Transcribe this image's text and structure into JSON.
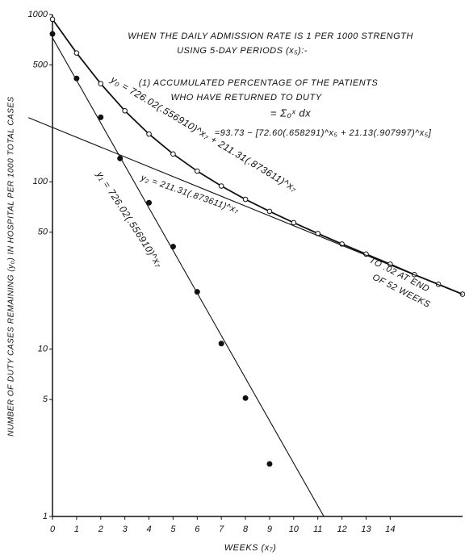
{
  "chart_data": {
    "type": "line",
    "log_y": true,
    "xlim": [
      0,
      17
    ],
    "ylim": [
      1,
      1000
    ],
    "xticks": [
      0,
      1,
      2,
      3,
      4,
      5,
      6,
      7,
      8,
      9,
      10,
      11,
      12,
      13,
      14
    ],
    "yticks": [
      1,
      5,
      10,
      50,
      100,
      500,
      1000
    ],
    "xlabel": "WEEKS (x₇)",
    "ylabel": "NUMBER OF DUTY CASES REMAINING (y₀) IN HOSPITAL PER 1000 TOTAL CASES",
    "color": "#111111",
    "series": [
      {
        "marker": "open",
        "line": true,
        "x": [
          0,
          1,
          2,
          3,
          4,
          5,
          6,
          7,
          8,
          9,
          10,
          11,
          12,
          13,
          14,
          15,
          16,
          17
        ],
        "values": [
          937,
          589,
          386,
          266,
          193,
          146.7,
          115.9,
          94.4,
          78.6,
          66.6,
          57,
          49.1,
          42.5,
          37,
          32.2,
          27.9,
          24.4,
          21.3
        ]
      },
      {
        "marker": "filled",
        "line": false,
        "x": [
          0,
          1,
          2,
          2.8,
          4,
          5,
          6,
          7,
          8,
          9
        ],
        "values": [
          766,
          415,
          243,
          138,
          75,
          41,
          22,
          10.8,
          5.1,
          2.06
        ]
      },
      {
        "marker": "none",
        "line": true,
        "x": [
          0,
          11.25
        ],
        "values": [
          726,
          1
        ]
      },
      {
        "marker": "none",
        "line": true,
        "x": [
          -1,
          17
        ],
        "values": [
          242,
          21.2
        ]
      }
    ],
    "annotations": [
      "WHEN THE DAILY ADMISSION RATE IS 1 PER 1000 STRENGTH",
      "USING 5-DAY PERIODS (x₅):-",
      "(1) ACCUMULATED PERCENTAGE OF THE PATIENTS",
      "WHO HAVE RETURNED TO DUTY",
      "= Σ₀ˣ dx",
      "=93.73 − [72.60(.658291)^x₅ + 21.13(.907997)^x₅]",
      "y₀ = 726.02(.556910)^x₇ + 211.31(.873611)^x₇",
      "y₂ = 211.31(.873611)^x₇",
      "y₁ = 726.02(.556910)^x₇",
      "TO .02 AT END",
      "OF 52 WEEKS"
    ]
  }
}
